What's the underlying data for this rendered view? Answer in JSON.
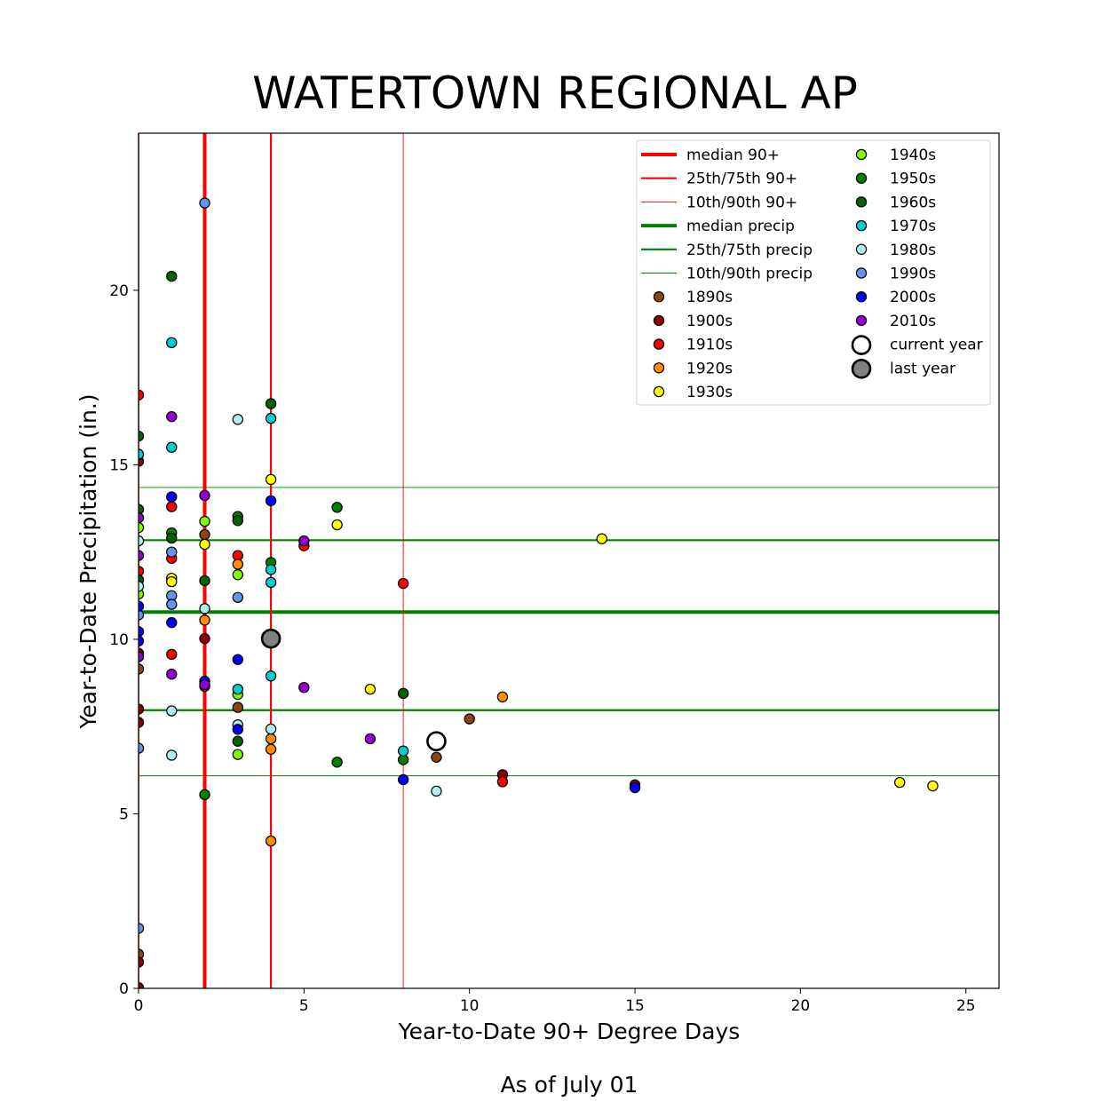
{
  "chart_data": {
    "type": "scatter",
    "title": "WATERTOWN REGIONAL AP",
    "xlabel": "Year-to-Date 90+ Degree Days",
    "ylabel": "Year-to-Date Precipitation (in.)",
    "subtitle": "As of July 01",
    "xlim": [
      0,
      26
    ],
    "ylim": [
      0,
      24.5
    ],
    "xticks": [
      0,
      5,
      10,
      15,
      20,
      25
    ],
    "yticks": [
      0,
      5,
      10,
      15,
      20
    ],
    "grid": false,
    "legend_placement": "top-right",
    "reference_lines": {
      "vertical": [
        {
          "name": "median 90+",
          "value": 2,
          "style": "median",
          "color": "#ff0000"
        },
        {
          "name": "25th/75th 90+",
          "value": 4,
          "style": "quartile",
          "color": "#ff0000"
        },
        {
          "name": "10th/90th 90+",
          "value": 0,
          "style": "decile",
          "color": "#ff0000"
        },
        {
          "value": 8,
          "style": "decile",
          "color": "#ff0000"
        }
      ],
      "horizontal": [
        {
          "name": "median precip",
          "value": 10.78,
          "style": "median",
          "color": "#008000"
        },
        {
          "name": "25th/75th precip",
          "value": 7.97,
          "style": "quartile",
          "color": "#008000"
        },
        {
          "name": "10th/90th precip",
          "value": 6.09,
          "style": "decile",
          "color": "#008000"
        },
        {
          "value": 12.84,
          "style": "quartile",
          "color": "#008000"
        },
        {
          "value": 14.35,
          "style": "decile",
          "color": "#008000"
        }
      ]
    },
    "series": [
      {
        "name": "1890s",
        "color": "#8B4513",
        "points": [
          [
            0,
            0.98
          ],
          [
            0,
            9.15
          ],
          [
            2,
            13.0
          ],
          [
            2,
            8.65
          ],
          [
            3,
            8.05
          ],
          [
            9,
            6.62
          ],
          [
            10,
            7.72
          ]
        ]
      },
      {
        "name": "1900s",
        "color": "#8B0000",
        "points": [
          [
            0,
            0.02
          ],
          [
            0,
            0.75
          ],
          [
            0,
            7.62
          ],
          [
            0,
            8.0
          ],
          [
            0,
            9.6
          ],
          [
            0,
            15.1
          ],
          [
            2,
            10.02
          ],
          [
            11,
            6.12
          ],
          [
            15,
            5.83
          ]
        ]
      },
      {
        "name": "1910s",
        "color": "#ff0000",
        "points": [
          [
            0,
            17.0
          ],
          [
            0,
            11.95
          ],
          [
            1,
            13.8
          ],
          [
            1,
            12.32
          ],
          [
            1,
            9.57
          ],
          [
            3,
            12.4
          ],
          [
            5,
            12.68
          ],
          [
            8,
            11.6
          ],
          [
            11,
            5.92
          ]
        ]
      },
      {
        "name": "1920s",
        "color": "#ff8c00",
        "points": [
          [
            2,
            10.55
          ],
          [
            3,
            12.15
          ],
          [
            4,
            7.15
          ],
          [
            4,
            6.85
          ],
          [
            4,
            4.22
          ],
          [
            11,
            8.35
          ]
        ]
      },
      {
        "name": "1930s",
        "color": "#ffff00",
        "points": [
          [
            1,
            11.75
          ],
          [
            1,
            11.65
          ],
          [
            2,
            12.72
          ],
          [
            4,
            14.58
          ],
          [
            6,
            13.28
          ],
          [
            7,
            8.57
          ],
          [
            14,
            12.88
          ],
          [
            23,
            5.9
          ],
          [
            24,
            5.8
          ]
        ]
      },
      {
        "name": "1940s",
        "color": "#7CFC00",
        "points": [
          [
            0,
            13.2
          ],
          [
            0,
            11.3
          ],
          [
            2,
            13.38
          ],
          [
            3,
            11.85
          ],
          [
            3,
            8.42
          ],
          [
            3,
            6.7
          ]
        ]
      },
      {
        "name": "1950s",
        "color": "#008000",
        "points": [
          [
            1,
            13.05
          ],
          [
            2,
            5.55
          ],
          [
            3,
            13.52
          ],
          [
            4,
            12.2
          ],
          [
            6,
            13.78
          ],
          [
            6,
            6.48
          ],
          [
            8,
            6.55
          ]
        ]
      },
      {
        "name": "1960s",
        "color": "#006400",
        "points": [
          [
            0,
            15.82
          ],
          [
            0,
            13.72
          ],
          [
            0,
            11.7
          ],
          [
            1,
            20.4
          ],
          [
            1,
            12.9
          ],
          [
            2,
            11.68
          ],
          [
            3,
            13.4
          ],
          [
            3,
            7.08
          ],
          [
            4,
            16.75
          ],
          [
            8,
            8.45
          ]
        ]
      },
      {
        "name": "1970s",
        "color": "#00CED1",
        "points": [
          [
            0,
            15.3
          ],
          [
            1,
            18.5
          ],
          [
            1,
            15.5
          ],
          [
            3,
            8.57
          ],
          [
            4,
            16.33
          ],
          [
            4,
            12.0
          ],
          [
            4,
            11.63
          ],
          [
            4,
            8.95
          ],
          [
            8,
            6.8
          ]
        ]
      },
      {
        "name": "1980s",
        "color": "#AFEEEE",
        "points": [
          [
            0,
            12.82
          ],
          [
            0,
            11.52
          ],
          [
            1,
            7.95
          ],
          [
            1,
            6.68
          ],
          [
            2,
            10.88
          ],
          [
            3,
            16.3
          ],
          [
            3,
            7.55
          ],
          [
            4,
            7.43
          ],
          [
            9,
            5.65
          ]
        ]
      },
      {
        "name": "1990s",
        "color": "#6495ED",
        "points": [
          [
            0,
            10.7
          ],
          [
            0,
            6.88
          ],
          [
            0,
            1.72
          ],
          [
            1,
            12.5
          ],
          [
            1,
            11.25
          ],
          [
            1,
            11.0
          ],
          [
            2,
            22.5
          ],
          [
            3,
            11.2
          ]
        ]
      },
      {
        "name": "2000s",
        "color": "#0000ff",
        "points": [
          [
            0,
            10.95
          ],
          [
            0,
            10.22
          ],
          [
            0,
            9.95
          ],
          [
            1,
            14.08
          ],
          [
            1,
            10.48
          ],
          [
            2,
            8.8
          ],
          [
            3,
            9.42
          ],
          [
            3,
            7.42
          ],
          [
            4,
            13.97
          ],
          [
            8,
            5.98
          ],
          [
            15,
            5.75
          ]
        ]
      },
      {
        "name": "2010s",
        "color": "#9400D3",
        "points": [
          [
            0,
            13.48
          ],
          [
            0,
            12.4
          ],
          [
            0,
            9.5
          ],
          [
            1,
            16.38
          ],
          [
            1,
            9.0
          ],
          [
            2,
            14.12
          ],
          [
            2,
            8.7
          ],
          [
            5,
            12.82
          ],
          [
            5,
            8.62
          ],
          [
            7,
            7.15
          ]
        ]
      }
    ],
    "highlights": [
      {
        "name": "current year",
        "x": 9,
        "y": 7.08,
        "fill": "#ffffff"
      },
      {
        "name": "last year",
        "x": 4,
        "y": 10.02,
        "fill": "#808080"
      }
    ]
  }
}
